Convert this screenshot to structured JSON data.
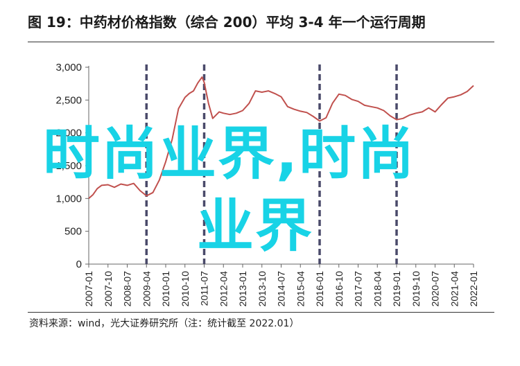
{
  "header": {
    "title": "图 19：中药材价格指数（综合 200）平均 3-4 年一个运行周期"
  },
  "footer": {
    "source": "资料来源：wind，光大证券研究所（注：统计截至 2022.01）"
  },
  "watermark": {
    "line1": "时尚业界,时尚",
    "line2": "业界",
    "color": "#18d3e6"
  },
  "chart_data": {
    "type": "line",
    "title": "",
    "xlabel": "",
    "ylabel": "",
    "ylim": [
      0,
      3000
    ],
    "xlim": [
      "2007-01",
      "2022-01"
    ],
    "grid": false,
    "legend": "none",
    "line_color": "#c0504d",
    "cycle_line_color": "#4a4a6a",
    "y_ticks": [
      "0",
      "500",
      "1,000",
      "1,500",
      "2,000",
      "2,500",
      "3,000"
    ],
    "y_tick_values": [
      0,
      500,
      1000,
      1500,
      2000,
      2500,
      3000
    ],
    "x_ticks": [
      "2007-01",
      "2007-10",
      "2008-07",
      "2009-04",
      "2010-01",
      "2010-10",
      "2011-07",
      "2012-04",
      "2013-01",
      "2013-10",
      "2014-07",
      "2015-04",
      "2016-01",
      "2016-10",
      "2017-07",
      "2018-04",
      "2019-01",
      "2019-10",
      "2020-07",
      "2021-04",
      "2022-01"
    ],
    "cycle_markers": [
      "2009-04",
      "2011-07",
      "2016-01",
      "2019-01"
    ],
    "series": [
      {
        "values": [
          [
            "2007-01",
            1000
          ],
          [
            "2007-03",
            1060
          ],
          [
            "2007-05",
            1150
          ],
          [
            "2007-07",
            1200
          ],
          [
            "2007-10",
            1210
          ],
          [
            "2008-01",
            1170
          ],
          [
            "2008-04",
            1220
          ],
          [
            "2008-07",
            1200
          ],
          [
            "2008-10",
            1230
          ],
          [
            "2009-01",
            1120
          ],
          [
            "2009-04",
            1040
          ],
          [
            "2009-07",
            1090
          ],
          [
            "2009-10",
            1280
          ],
          [
            "2010-01",
            1560
          ],
          [
            "2010-04",
            1900
          ],
          [
            "2010-07",
            2370
          ],
          [
            "2010-10",
            2540
          ],
          [
            "2010-12",
            2600
          ],
          [
            "2011-02",
            2640
          ],
          [
            "2011-04",
            2760
          ],
          [
            "2011-06",
            2850
          ],
          [
            "2011-07",
            2770
          ],
          [
            "2011-09",
            2450
          ],
          [
            "2011-11",
            2220
          ],
          [
            "2012-02",
            2320
          ],
          [
            "2012-04",
            2300
          ],
          [
            "2012-07",
            2280
          ],
          [
            "2012-10",
            2300
          ],
          [
            "2013-01",
            2340
          ],
          [
            "2013-04",
            2450
          ],
          [
            "2013-07",
            2640
          ],
          [
            "2013-10",
            2620
          ],
          [
            "2014-01",
            2640
          ],
          [
            "2014-04",
            2600
          ],
          [
            "2014-07",
            2550
          ],
          [
            "2014-10",
            2400
          ],
          [
            "2015-01",
            2360
          ],
          [
            "2015-04",
            2330
          ],
          [
            "2015-07",
            2310
          ],
          [
            "2015-10",
            2250
          ],
          [
            "2016-01",
            2180
          ],
          [
            "2016-04",
            2230
          ],
          [
            "2016-07",
            2450
          ],
          [
            "2016-10",
            2590
          ],
          [
            "2017-01",
            2570
          ],
          [
            "2017-04",
            2510
          ],
          [
            "2017-07",
            2480
          ],
          [
            "2017-10",
            2420
          ],
          [
            "2018-01",
            2400
          ],
          [
            "2018-04",
            2380
          ],
          [
            "2018-07",
            2340
          ],
          [
            "2018-10",
            2260
          ],
          [
            "2019-01",
            2200
          ],
          [
            "2019-04",
            2220
          ],
          [
            "2019-07",
            2270
          ],
          [
            "2019-10",
            2300
          ],
          [
            "2020-01",
            2320
          ],
          [
            "2020-04",
            2380
          ],
          [
            "2020-07",
            2320
          ],
          [
            "2020-10",
            2430
          ],
          [
            "2021-01",
            2530
          ],
          [
            "2021-04",
            2550
          ],
          [
            "2021-07",
            2580
          ],
          [
            "2021-10",
            2630
          ],
          [
            "2022-01",
            2720
          ]
        ]
      }
    ]
  }
}
